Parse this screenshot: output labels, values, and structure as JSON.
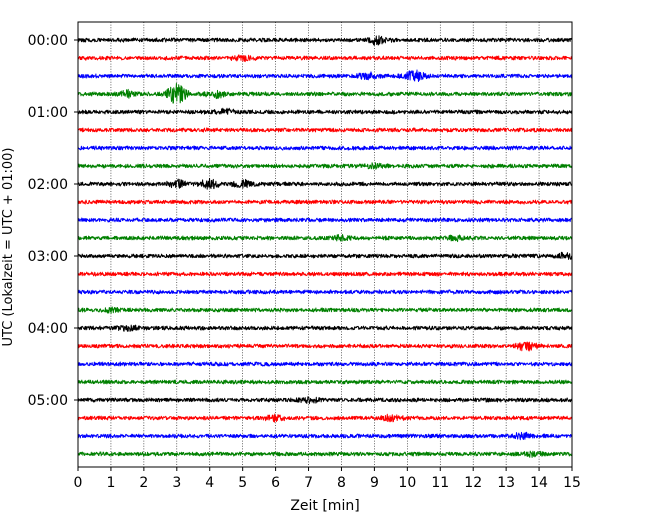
{
  "chart_data": {
    "type": "line",
    "title": "",
    "xlabel": "Zeit  [min]",
    "ylabel": "UTC (Lokalzeit = UTC + 01:00)",
    "xlim": [
      0,
      15
    ],
    "x_ticks": [
      "0",
      "1",
      "2",
      "3",
      "4",
      "5",
      "6",
      "7",
      "8",
      "9",
      "10",
      "11",
      "12",
      "13",
      "14",
      "15"
    ],
    "y_ticks": [
      "00:00",
      "01:00",
      "02:00",
      "03:00",
      "04:00",
      "05:00"
    ],
    "grid": "vertical dotted lines at each minute",
    "legend": "none",
    "colors": [
      "#000000",
      "#ff0000",
      "#0000ff",
      "#008000"
    ],
    "series": [
      {
        "start": "00:00",
        "color": "#000000",
        "events": [
          {
            "t": 9.1,
            "amp": 1.6
          }
        ]
      },
      {
        "start": "00:15",
        "color": "#ff0000",
        "events": [
          {
            "t": 5.0,
            "amp": 0.9
          }
        ]
      },
      {
        "start": "00:30",
        "color": "#0000ff",
        "events": [
          {
            "t": 10.2,
            "amp": 2.0
          },
          {
            "t": 8.8,
            "amp": 1.2
          }
        ]
      },
      {
        "start": "00:45",
        "color": "#008000",
        "events": [
          {
            "t": 3.0,
            "amp": 4.0
          },
          {
            "t": 1.5,
            "amp": 1.2
          },
          {
            "t": 4.2,
            "amp": 1.4
          }
        ]
      },
      {
        "start": "01:00",
        "color": "#000000",
        "events": [
          {
            "t": 4.5,
            "amp": 0.9
          }
        ]
      },
      {
        "start": "01:15",
        "color": "#ff0000",
        "events": []
      },
      {
        "start": "01:30",
        "color": "#0000ff",
        "events": []
      },
      {
        "start": "01:45",
        "color": "#008000",
        "events": [
          {
            "t": 9.0,
            "amp": 0.8
          }
        ]
      },
      {
        "start": "02:00",
        "color": "#000000",
        "events": [
          {
            "t": 4.0,
            "amp": 1.8
          },
          {
            "t": 3.0,
            "amp": 1.4
          },
          {
            "t": 5.0,
            "amp": 1.3
          }
        ]
      },
      {
        "start": "02:15",
        "color": "#ff0000",
        "events": []
      },
      {
        "start": "02:30",
        "color": "#0000ff",
        "events": []
      },
      {
        "start": "02:45",
        "color": "#008000",
        "events": [
          {
            "t": 8.0,
            "amp": 0.9
          },
          {
            "t": 11.5,
            "amp": 0.8
          }
        ]
      },
      {
        "start": "03:00",
        "color": "#000000",
        "events": [
          {
            "t": 14.8,
            "amp": 1.0
          }
        ]
      },
      {
        "start": "03:15",
        "color": "#ff0000",
        "events": []
      },
      {
        "start": "03:30",
        "color": "#0000ff",
        "events": []
      },
      {
        "start": "03:45",
        "color": "#008000",
        "events": [
          {
            "t": 1.0,
            "amp": 0.8
          }
        ]
      },
      {
        "start": "04:00",
        "color": "#000000",
        "events": [
          {
            "t": 1.5,
            "amp": 0.8
          }
        ]
      },
      {
        "start": "04:15",
        "color": "#ff0000",
        "events": [
          {
            "t": 13.6,
            "amp": 1.6
          }
        ]
      },
      {
        "start": "04:30",
        "color": "#0000ff",
        "events": []
      },
      {
        "start": "04:45",
        "color": "#008000",
        "events": []
      },
      {
        "start": "05:00",
        "color": "#000000",
        "events": [
          {
            "t": 7.0,
            "amp": 0.9
          }
        ]
      },
      {
        "start": "05:15",
        "color": "#ff0000",
        "events": [
          {
            "t": 6.0,
            "amp": 1.1
          },
          {
            "t": 9.5,
            "amp": 1.0
          }
        ]
      },
      {
        "start": "05:30",
        "color": "#0000ff",
        "events": [
          {
            "t": 13.5,
            "amp": 1.0
          }
        ]
      },
      {
        "start": "05:45",
        "color": "#008000",
        "events": [
          {
            "t": 13.8,
            "amp": 1.0
          }
        ]
      }
    ]
  }
}
